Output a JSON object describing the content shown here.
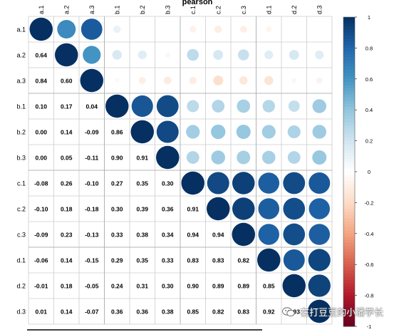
{
  "chart_data": {
    "type": "heatmap",
    "method": "pearson",
    "upper_style": "circle",
    "lower_style": "number",
    "variables": [
      "a.1",
      "a.2",
      "a.3",
      "b.1",
      "b.2",
      "b.3",
      "c.1",
      "c.2",
      "c.3",
      "d.1",
      "d.2",
      "d.3"
    ],
    "correlation_matrix": [
      [
        1.0,
        0.64,
        0.84,
        0.1,
        0.0,
        0.0,
        -0.08,
        -0.1,
        -0.09,
        -0.06,
        -0.01,
        0.01
      ],
      [
        0.64,
        1.0,
        0.6,
        0.17,
        0.14,
        0.05,
        0.26,
        0.18,
        0.23,
        0.14,
        0.18,
        0.14
      ],
      [
        0.84,
        0.6,
        1.0,
        0.04,
        -0.09,
        -0.11,
        -0.1,
        -0.18,
        -0.13,
        -0.15,
        -0.05,
        -0.07
      ],
      [
        0.1,
        0.17,
        0.04,
        1.0,
        0.86,
        0.9,
        0.27,
        0.3,
        0.33,
        0.29,
        0.24,
        0.36
      ],
      [
        0.0,
        0.14,
        -0.09,
        0.86,
        1.0,
        0.91,
        0.35,
        0.39,
        0.38,
        0.35,
        0.31,
        0.36
      ],
      [
        0.0,
        0.05,
        -0.11,
        0.9,
        0.91,
        1.0,
        0.3,
        0.36,
        0.34,
        0.33,
        0.3,
        0.38
      ],
      [
        -0.08,
        0.26,
        -0.1,
        0.27,
        0.35,
        0.3,
        1.0,
        0.91,
        0.94,
        0.83,
        0.9,
        0.85
      ],
      [
        -0.1,
        0.18,
        -0.18,
        0.3,
        0.39,
        0.36,
        0.91,
        1.0,
        0.94,
        0.83,
        0.89,
        0.82
      ],
      [
        -0.09,
        0.23,
        -0.13,
        0.33,
        0.38,
        0.34,
        0.94,
        0.94,
        1.0,
        0.82,
        0.89,
        0.83
      ],
      [
        -0.06,
        0.14,
        -0.15,
        0.29,
        0.35,
        0.33,
        0.83,
        0.83,
        0.82,
        1.0,
        0.85,
        0.92
      ],
      [
        -0.01,
        0.18,
        -0.05,
        0.24,
        0.31,
        0.3,
        0.9,
        0.89,
        0.89,
        0.85,
        1.0,
        0.93
      ],
      [
        0.01,
        0.14,
        -0.07,
        0.36,
        0.36,
        0.38,
        0.85,
        0.82,
        0.83,
        0.92,
        0.93,
        1.0
      ]
    ],
    "color_scale": {
      "range": [
        -1,
        1
      ],
      "ticks": [
        "1",
        "0.8",
        "0.6",
        "0.4",
        "0.2",
        "0",
        "-0.2",
        "-0.4",
        "-0.6",
        "-0.8",
        "-1"
      ],
      "colors": [
        "#67001F",
        "#B2182B",
        "#D6604D",
        "#F4A582",
        "#FDDBC7",
        "#FFFFFF",
        "#D1E5F0",
        "#92C5DE",
        "#4393C3",
        "#2166AC",
        "#053061"
      ]
    },
    "title_partial": "pearson",
    "grid": true
  },
  "watermark": {
    "text": "在打豆豆的小潘学长",
    "icon": "wechat-icon"
  }
}
